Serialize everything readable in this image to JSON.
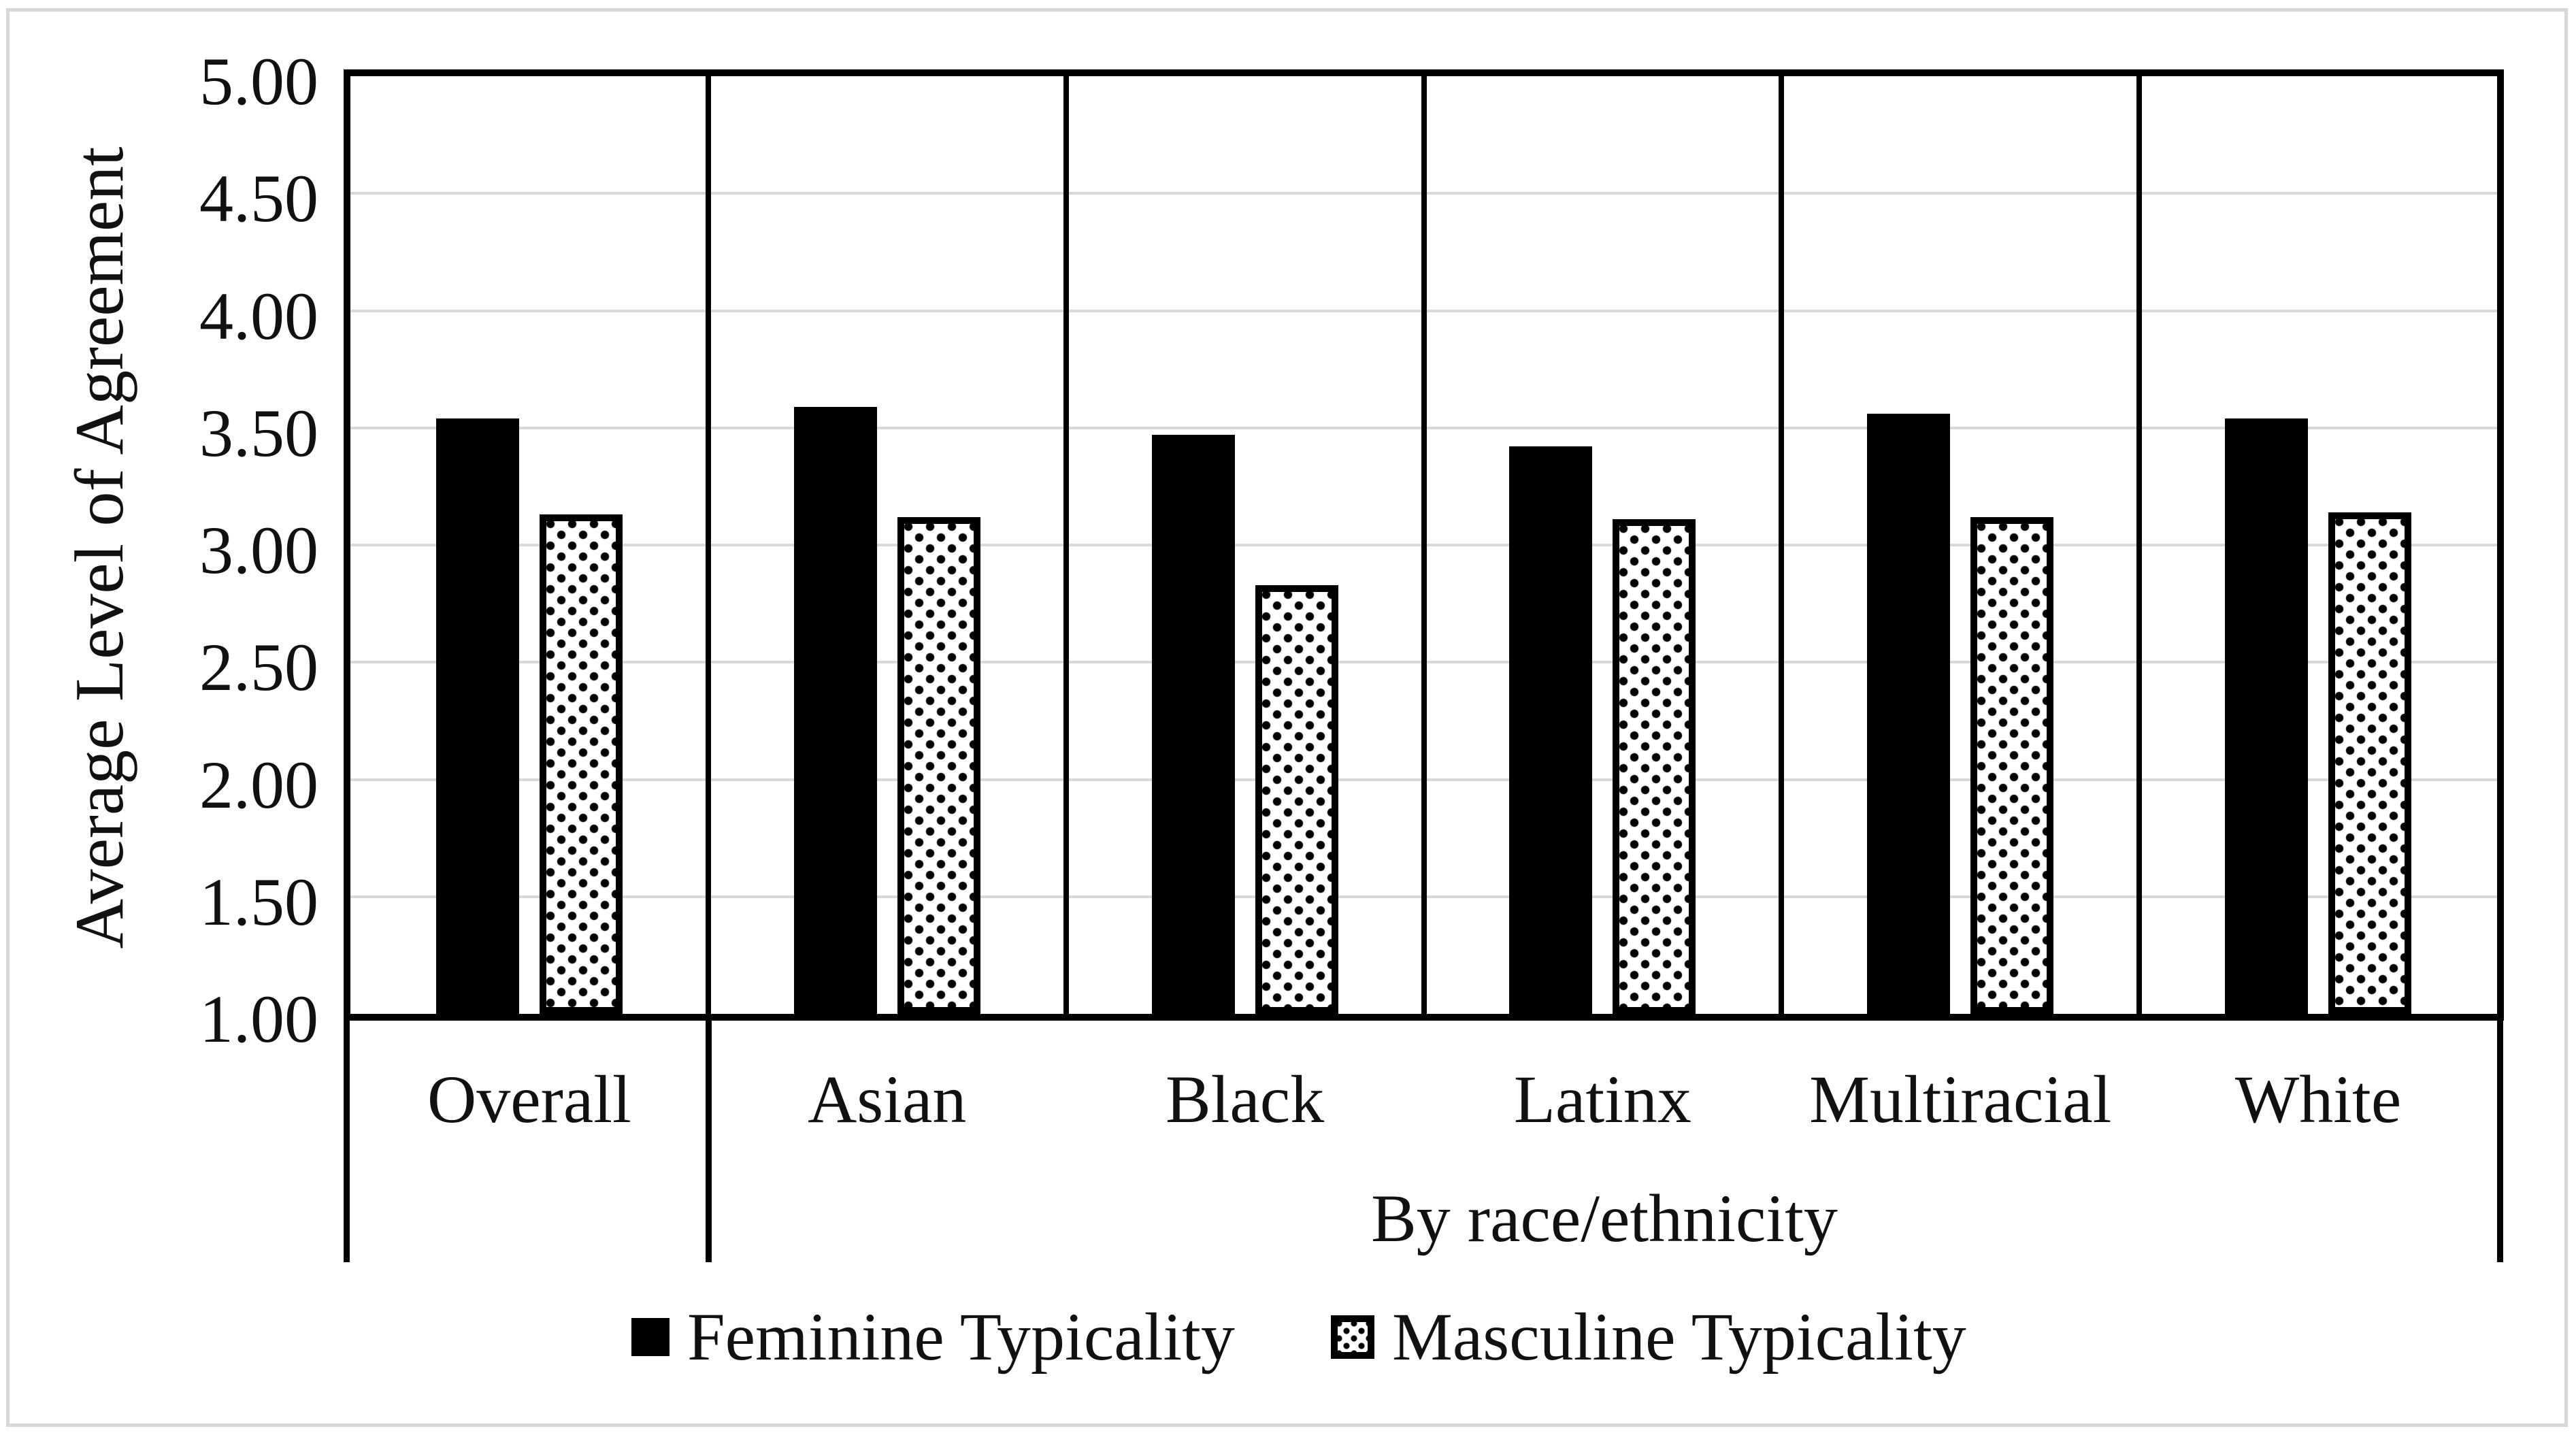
{
  "figure": {
    "y_axis_title": "Average Level of Agreement",
    "x_group_label": "By race/ethnicity",
    "y_tick_labels": [
      "5.00",
      "4.50",
      "4.00",
      "3.50",
      "3.00",
      "2.50",
      "2.00",
      "1.50",
      "1.00"
    ]
  },
  "legend": {
    "items": [
      {
        "label": "Feminine Typicality",
        "style": "solid"
      },
      {
        "label": "Masculine Typicality",
        "style": "dotted"
      }
    ]
  },
  "colors": {
    "bar_fill": "#000000",
    "line": "#000000",
    "gridline": "#d9d9d9",
    "frame": "#d8d8d8",
    "text": "#111111"
  },
  "chart_data": {
    "type": "bar",
    "categories": [
      "Overall",
      "Asian",
      "Black",
      "Latinx",
      "Multiracial",
      "White"
    ],
    "series": [
      {
        "name": "Feminine Typicality",
        "style": "solid",
        "values": [
          3.54,
          3.59,
          3.47,
          3.42,
          3.56,
          3.54
        ]
      },
      {
        "name": "Masculine Typicality",
        "style": "dotted",
        "values": [
          3.13,
          3.12,
          2.83,
          3.11,
          3.12,
          3.14
        ]
      }
    ],
    "title": "",
    "xlabel": "By race/ethnicity",
    "ylabel": "Average Level of Agreement",
    "ylim": [
      1.0,
      5.0
    ],
    "ytick_step": 0.5,
    "grid": true,
    "category_separators": true,
    "legend_position": "bottom"
  }
}
